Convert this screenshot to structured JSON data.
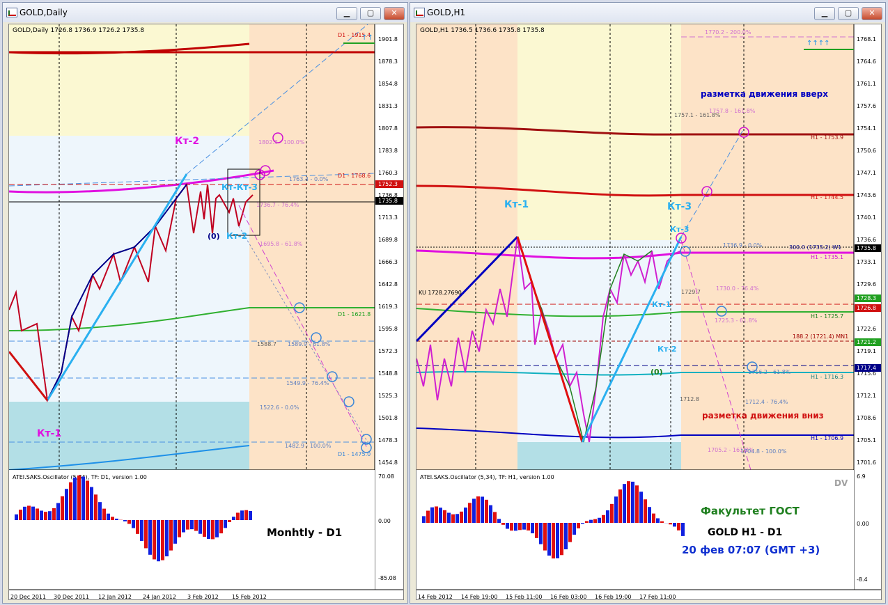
{
  "colors": {
    "accent_blue": "#1ea7e8",
    "navy": "#000088",
    "crimson": "#d01010",
    "magenta": "#ff00ff",
    "green": "#20a020"
  },
  "left": {
    "title": "GOLD,Daily",
    "header": "GOLD,Daily 1726.8 1736.9 1726.2 1735.8",
    "price_ticks": [
      "1901.8",
      "1878.3",
      "1854.8",
      "1831.3",
      "1807.8",
      "1783.8",
      "1760.3",
      "1736.8",
      "1713.3",
      "1689.8",
      "1666.3",
      "1642.8",
      "1619.3",
      "1595.8",
      "1572.3",
      "1548.8",
      "1525.3",
      "1501.8",
      "1478.3",
      "1454.8"
    ],
    "price_badges": [
      {
        "text": "1752.3",
        "color": "#d01010"
      },
      {
        "text": "1735.8",
        "color": "#000000"
      }
    ],
    "labels": {
      "kt1": "Кт-1",
      "kt2": "Кт-2",
      "kt3": "Кт-Кт-3",
      "kt2b": "Кт-2",
      "zero": "(0)"
    },
    "right_labels": [
      "D1 - 1915.4",
      "D1 - 1768.6",
      "D1 - 1621.8",
      "D1 - 1475.0"
    ],
    "fibo": [
      "1802.3 - 100.0%",
      "1763.4 - 0.0%",
      "1736.7 - 76.4%",
      "1695.8 - 61.8%",
      "1588.7",
      "1589.9 - 61.8%",
      "1549.9 - 76.4%",
      "1522.6 - 0.0%",
      "1482.9 - 100.0%"
    ],
    "osc_title": "ATEI.SAKS.Oscillator (5,34), TF: D1, version 1.00",
    "osc_ticks": [
      "70.08",
      "0.00",
      "-85.08"
    ],
    "osc_caption": "Monhtly - D1",
    "dates": [
      "20 Dec 2011",
      "30 Dec 2011",
      "12 Jan 2012",
      "24 Jan 2012",
      "3 Feb 2012",
      "15 Feb 2012"
    ]
  },
  "right": {
    "title": "GOLD,H1",
    "header": "GOLD,H1 1736.5 1736.6 1735.8 1735.8",
    "price_ticks": [
      "1768.1",
      "1764.6",
      "1761.1",
      "1757.6",
      "1754.1",
      "1750.6",
      "1747.1",
      "1743.6",
      "1740.1",
      "1736.6",
      "1733.1",
      "1729.6",
      "1726.1",
      "1722.6",
      "1719.1",
      "1715.6",
      "1712.1",
      "1708.6",
      "1705.1",
      "1701.6"
    ],
    "price_badges": [
      {
        "text": "1735.8",
        "color": "#000000"
      },
      {
        "text": "1728.3",
        "color": "#20a020"
      },
      {
        "text": "1726.8",
        "color": "#d01010"
      },
      {
        "text": "1721.2",
        "color": "#20a020"
      },
      {
        "text": "1717.4",
        "color": "#000088"
      }
    ],
    "labels": {
      "kt1": "Кт-1",
      "kt3a": "Кт-3",
      "kt3b": "Кт-3",
      "kt1b": "Кт-1",
      "kt2": "Кт-2",
      "zero": "(0)",
      "up": "разметка движения вверх",
      "down": "разметка движения вниз",
      "ku": "KU 1728.27690"
    },
    "right_labels": [
      "H1 - 1753.9",
      "H1 - 1744.5",
      "H1 - 1735.1",
      "H1 - 1725.7",
      "H1 - 1716.3",
      "H1 - 1706.9",
      "188.2 (1721.4) MN1",
      "300.0 (1735.2) W1"
    ],
    "fibo": [
      "1770.2 - 200.0%",
      "1757.1 - 161.8%",
      "1757.8 - 161.8%",
      "1736.9 - 0.0%",
      "1730.0 - 76.4%",
      "1729.7",
      "1725.3 - 61.8%",
      "1716.2 - 61.8%",
      "1712.4 - 76.4%",
      "1712.8",
      "1705.2 - 161.8%",
      "1704.8 - 100.0%"
    ],
    "osc_title": "ATEI.SAKS.Oscillator (5,34), TF: H1, version 1.00",
    "osc_ticks": [
      "6.9",
      "0.00",
      "-8.4"
    ],
    "osc_dv": "DV",
    "caption1": "Факультет ГОСТ",
    "caption2": "GOLD   H1 - D1",
    "caption3": "20 фев 07:07 (GMT +3)",
    "dates": [
      "14 Feb 2012",
      "14 Feb 19:00",
      "15 Feb 11:00",
      "16 Feb 03:00",
      "16 Feb 19:00",
      "17 Feb 11:00"
    ]
  }
}
